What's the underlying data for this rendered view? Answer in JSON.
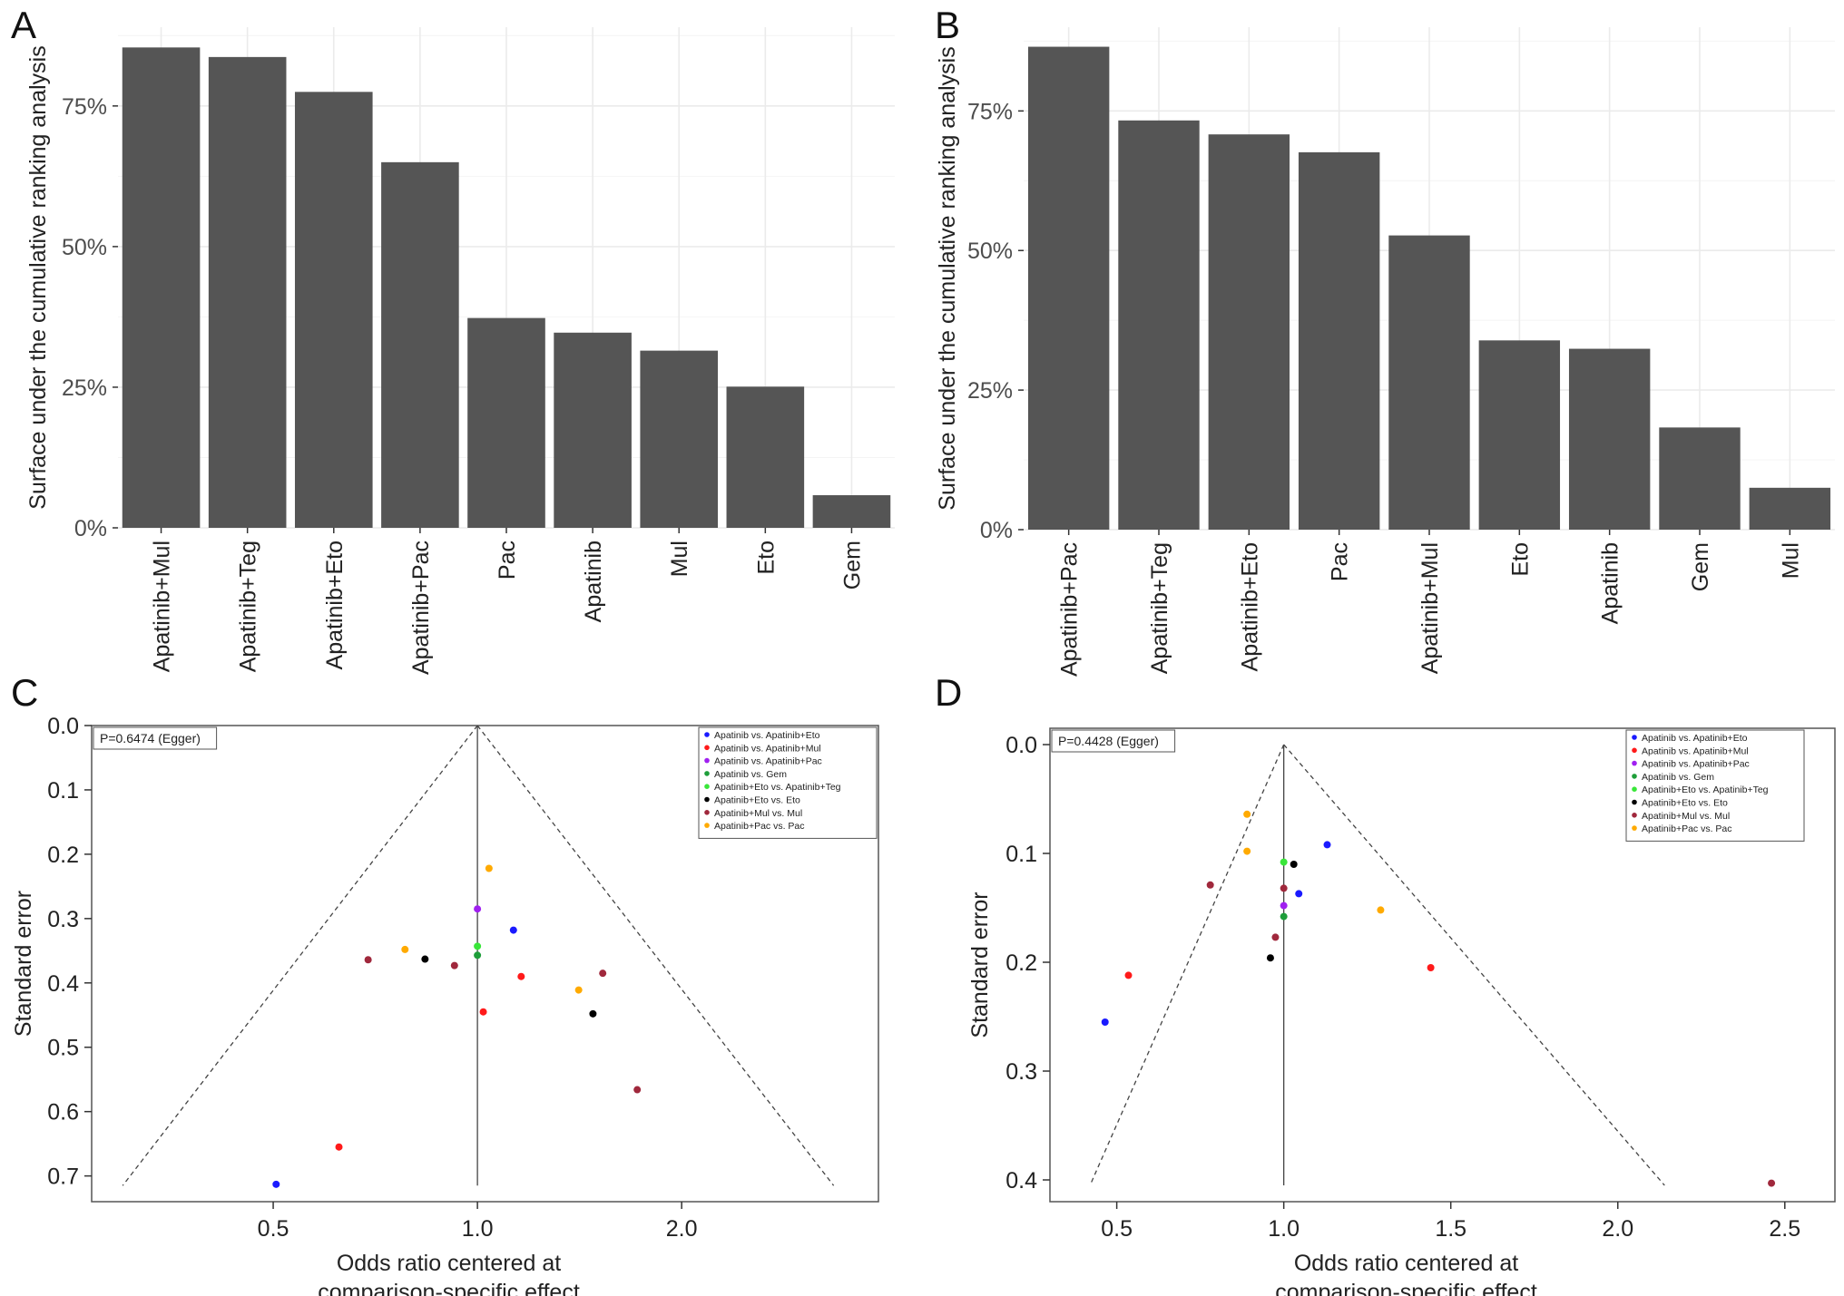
{
  "panels": [
    {
      "letter": "A"
    },
    {
      "letter": "B"
    },
    {
      "letter": "C"
    },
    {
      "letter": "D"
    }
  ],
  "chart_data": [
    {
      "id": "A",
      "type": "bar",
      "ylabel": "Surface under the cumulative ranking analysis",
      "categories": [
        "Apatinib+Mul",
        "Apatinib+Teg",
        "Apatinib+Eto",
        "Apatinib+Pac",
        "Pac",
        "Apatinib",
        "Mul",
        "Eto",
        "Gem"
      ],
      "values": [
        85.4,
        83.7,
        77.5,
        65.0,
        37.3,
        34.7,
        31.5,
        25.1,
        5.8
      ],
      "ylim": [
        0,
        89
      ],
      "yticks": [
        0,
        25,
        50,
        75
      ],
      "ytick_labels": [
        "0%",
        "25%",
        "50%",
        "75%"
      ],
      "bar_color": "#555555",
      "grid": true
    },
    {
      "id": "B",
      "type": "bar",
      "ylabel": "Surface under the cumulative ranking analysis",
      "categories": [
        "Apatinib+Pac",
        "Apatinib+Teg",
        "Apatinib+Eto",
        "Pac",
        "Apatinib+Mul",
        "Eto",
        "Apatinib",
        "Gem",
        "Mul"
      ],
      "values": [
        86.5,
        73.3,
        70.8,
        67.6,
        52.7,
        33.9,
        32.4,
        18.3,
        7.5
      ],
      "ylim": [
        0,
        90
      ],
      "yticks": [
        0,
        25,
        50,
        75
      ],
      "ytick_labels": [
        "0%",
        "25%",
        "50%",
        "75%"
      ],
      "bar_color": "#555555",
      "grid": true
    },
    {
      "id": "C",
      "type": "scatter",
      "annotation": "P=0.6474 (Egger)",
      "xlabel": [
        "Odds ratio centered at",
        "comparison-specific effect"
      ],
      "ylabel": "Standard error",
      "x_scale": "log",
      "xlim": [
        0.27,
        3.9
      ],
      "ylim": [
        0.74,
        0
      ],
      "xticks": [
        0.5,
        1.0,
        2.0
      ],
      "xtick_labels": [
        "0.5",
        "1.0",
        "2.0"
      ],
      "yticks": [
        0.0,
        0.1,
        0.2,
        0.3,
        0.4,
        0.5,
        0.6,
        0.7
      ],
      "ytick_labels": [
        "0.0",
        "0.1",
        "0.2",
        "0.3",
        "0.4",
        "0.5",
        "0.6",
        "0.7"
      ],
      "funnel": {
        "apex": [
          1.0,
          0.0
        ],
        "left": [
          0.3,
          0.715
        ],
        "right": [
          3.35,
          0.715
        ]
      },
      "legend": [
        {
          "label": "Apatinib vs. Apatinib+Eto",
          "color": "#1a1aff"
        },
        {
          "label": "Apatinib vs. Apatinib+Mul",
          "color": "#ff1a1a"
        },
        {
          "label": "Apatinib vs. Apatinib+Pac",
          "color": "#a020f0"
        },
        {
          "label": "Apatinib vs. Gem",
          "color": "#1e9e3a"
        },
        {
          "label": "Apatinib+Eto vs. Apatinib+Teg",
          "color": "#39e639"
        },
        {
          "label": "Apatinib+Eto vs. Eto",
          "color": "#000000"
        },
        {
          "label": "Apatinib+Mul vs. Mul",
          "color": "#a0283c"
        },
        {
          "label": "Apatinib+Pac vs. Pac",
          "color": "#ffaa00"
        }
      ],
      "points": [
        {
          "x": 0.505,
          "y": 0.713,
          "group": 0
        },
        {
          "x": 1.13,
          "y": 0.318,
          "group": 0
        },
        {
          "x": 0.625,
          "y": 0.655,
          "group": 1
        },
        {
          "x": 1.16,
          "y": 0.39,
          "group": 1
        },
        {
          "x": 1.02,
          "y": 0.445,
          "group": 1
        },
        {
          "x": 1.0,
          "y": 0.285,
          "group": 2
        },
        {
          "x": 1.0,
          "y": 0.357,
          "group": 3
        },
        {
          "x": 1.0,
          "y": 0.343,
          "group": 4
        },
        {
          "x": 0.837,
          "y": 0.363,
          "group": 5
        },
        {
          "x": 1.48,
          "y": 0.448,
          "group": 5
        },
        {
          "x": 0.69,
          "y": 0.364,
          "group": 6
        },
        {
          "x": 0.925,
          "y": 0.373,
          "group": 6
        },
        {
          "x": 1.53,
          "y": 0.385,
          "group": 6
        },
        {
          "x": 1.72,
          "y": 0.566,
          "group": 6
        },
        {
          "x": 1.04,
          "y": 0.222,
          "group": 7
        },
        {
          "x": 0.782,
          "y": 0.348,
          "group": 7
        },
        {
          "x": 1.41,
          "y": 0.411,
          "group": 7
        }
      ]
    },
    {
      "id": "D",
      "type": "scatter",
      "annotation": "P=0.4428 (Egger)",
      "xlabel": [
        "Odds ratio centered at",
        "comparison-specific effect"
      ],
      "ylabel": "Standard error",
      "x_scale": "linear",
      "xlim": [
        0.3,
        2.65
      ],
      "ylim": [
        0.42,
        -0.015
      ],
      "xticks": [
        0.5,
        1.0,
        1.5,
        2.0,
        2.5
      ],
      "xtick_labels": [
        "0.5",
        "1.0",
        "1.5",
        "2.0",
        "2.5"
      ],
      "yticks": [
        0.0,
        0.1,
        0.2,
        0.3,
        0.4
      ],
      "ytick_labels": [
        "0.0",
        "0.1",
        "0.2",
        "0.3",
        "0.4"
      ],
      "funnel": {
        "apex": [
          1.0,
          0.0
        ],
        "left": [
          0.42,
          0.405
        ],
        "right": [
          2.14,
          0.405
        ]
      },
      "legend": [
        {
          "label": "Apatinib vs. Apatinib+Eto",
          "color": "#1a1aff"
        },
        {
          "label": "Apatinib vs. Apatinib+Mul",
          "color": "#ff1a1a"
        },
        {
          "label": "Apatinib vs. Apatinib+Pac",
          "color": "#a020f0"
        },
        {
          "label": "Apatinib vs. Gem",
          "color": "#1e9e3a"
        },
        {
          "label": "Apatinib+Eto vs. Apatinib+Teg",
          "color": "#39e639"
        },
        {
          "label": "Apatinib+Eto vs. Eto",
          "color": "#000000"
        },
        {
          "label": "Apatinib+Mul vs. Mul",
          "color": "#a0283c"
        },
        {
          "label": "Apatinib+Pac vs. Pac",
          "color": "#ffaa00"
        }
      ],
      "points": [
        {
          "x": 1.13,
          "y": 0.092,
          "group": 0
        },
        {
          "x": 1.045,
          "y": 0.137,
          "group": 0
        },
        {
          "x": 0.465,
          "y": 0.255,
          "group": 0
        },
        {
          "x": 0.535,
          "y": 0.212,
          "group": 1
        },
        {
          "x": 1.44,
          "y": 0.205,
          "group": 1
        },
        {
          "x": 1.0,
          "y": 0.148,
          "group": 2
        },
        {
          "x": 1.0,
          "y": 0.158,
          "group": 3
        },
        {
          "x": 1.0,
          "y": 0.108,
          "group": 4
        },
        {
          "x": 1.03,
          "y": 0.11,
          "group": 5
        },
        {
          "x": 0.96,
          "y": 0.196,
          "group": 5
        },
        {
          "x": 0.78,
          "y": 0.129,
          "group": 6
        },
        {
          "x": 1.0,
          "y": 0.132,
          "group": 6
        },
        {
          "x": 0.975,
          "y": 0.177,
          "group": 6
        },
        {
          "x": 2.46,
          "y": 0.403,
          "group": 6
        },
        {
          "x": 0.89,
          "y": 0.064,
          "group": 7
        },
        {
          "x": 0.89,
          "y": 0.098,
          "group": 7
        },
        {
          "x": 1.29,
          "y": 0.152,
          "group": 7
        }
      ]
    }
  ]
}
